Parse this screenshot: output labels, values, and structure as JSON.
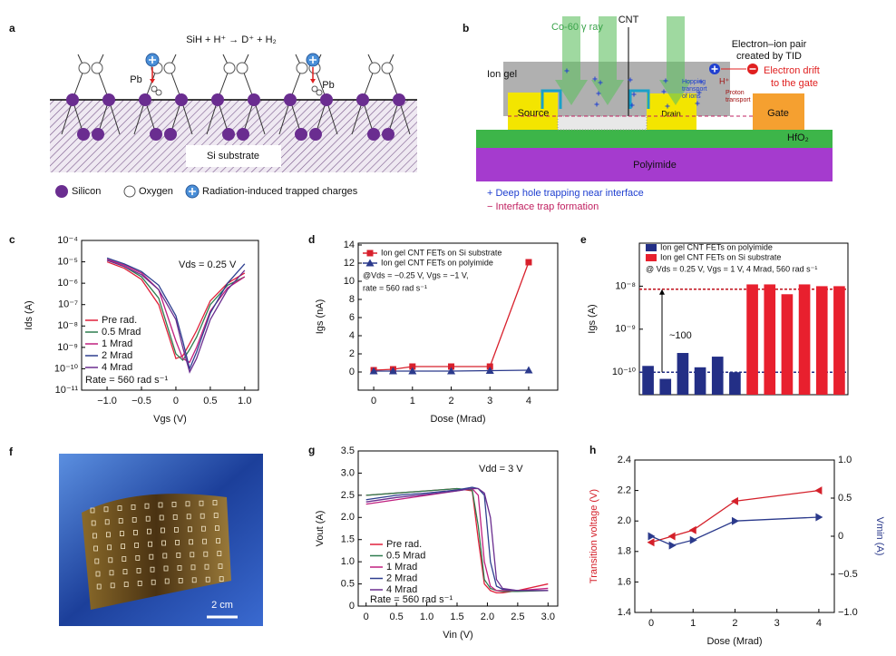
{
  "panel_a": {
    "label": "a",
    "equation": "SiH + H⁺ → D⁺ + H₂",
    "pb": [
      "Pb",
      "Pb"
    ],
    "substrate": "Si substrate",
    "legend": [
      "Silicon",
      "Oxygen",
      "Radiation-induced trapped charges"
    ]
  },
  "panel_b": {
    "label": "b",
    "cnt": "CNT",
    "ray": "Co-60 γ ray",
    "pair": [
      "Electron–ion pair",
      "created by TID"
    ],
    "ion_gel": "Ion gel",
    "hopping": [
      "Hopping",
      "transport",
      "of ions"
    ],
    "drift": [
      "Electron drift",
      "to the gate"
    ],
    "proton": "H⁺",
    "proton_transport": [
      "Proton",
      "transport"
    ],
    "source": "Source",
    "drain": "Drain",
    "gate": "Gate",
    "hfo2": "HfO₂",
    "polyimide": "Polyimide",
    "notes": [
      "+ Deep hole trapping near interface",
      "− Interface trap formation"
    ]
  },
  "panel_f": {
    "label": "f",
    "scale": "2 cm"
  },
  "chart_data": [
    {
      "type": "line",
      "label": "c",
      "xlabel": "Vgs (V)",
      "ylabel": "Ids (A)",
      "log_y": true,
      "xlim": [
        -1.37,
        1.2
      ],
      "ylim": [
        1e-11,
        0.0001
      ],
      "xticks": [
        {
          "value": -1,
          "label": "−1.0"
        },
        {
          "value": -0.5,
          "label": "−0.5"
        },
        0,
        0.5,
        {
          "value": 1,
          "label": "1.0"
        }
      ],
      "yticks": [
        {
          "value": 1e-11,
          "label": "10⁻¹¹"
        },
        {
          "value": 1e-10,
          "label": "10⁻¹⁰"
        },
        {
          "value": 1e-09,
          "label": "10⁻⁹"
        },
        {
          "value": 1e-08,
          "label": "10⁻⁸"
        },
        {
          "value": 1e-07,
          "label": "10⁻⁷"
        },
        {
          "value": 1e-06,
          "label": "10⁻⁶"
        },
        {
          "value": 1e-05,
          "label": "10⁻⁵"
        },
        {
          "value": 0.0001,
          "label": "10⁻⁴"
        }
      ],
      "x": [
        -1,
        -0.75,
        -0.5,
        -0.25,
        0,
        0.1,
        0.2,
        0.3,
        0.5,
        0.75,
        1
      ],
      "series": [
        {
          "name": "Pre rad.",
          "color": "#e0203a",
          "values": [
            1e-05,
            5e-06,
            1.5e-06,
            1e-07,
            3e-10,
            4e-10,
            1.5e-09,
            6e-09,
            1.5e-07,
            1e-06,
            3e-06
          ]
        },
        {
          "name": "0.5 Mrad",
          "color": "#2e7d4f",
          "values": [
            1.2e-05,
            6e-06,
            2e-06,
            2e-07,
            5e-10,
            2.5e-10,
            8e-10,
            3e-09,
            1e-07,
            8e-07,
            2e-06
          ]
        },
        {
          "name": "1 Mrad",
          "color": "#c0207f",
          "values": [
            1.3e-05,
            7e-06,
            3e-06,
            5e-07,
            2e-09,
            3e-10,
            2e-10,
            1e-09,
            5e-08,
            6e-07,
            2e-06
          ]
        },
        {
          "name": "2 Mrad",
          "color": "#2e3f8f",
          "values": [
            1.5e-05,
            8e-06,
            3.5e-06,
            8e-07,
            3e-08,
            2e-09,
            1e-10,
            6e-10,
            4e-08,
            1e-06,
            8e-06
          ]
        },
        {
          "name": "4 Mrad",
          "color": "#6a2d8f",
          "values": [
            1.2e-05,
            6e-06,
            2.5e-06,
            5e-07,
            2e-08,
            1e-09,
            7e-11,
            3e-10,
            2e-08,
            5e-07,
            4e-06
          ]
        }
      ],
      "annotations": [
        "Vds = 0.25 V",
        "Rate = 560 rad s⁻¹"
      ],
      "legend": "lower left"
    },
    {
      "type": "line",
      "label": "d",
      "xlabel": "Dose (Mrad)",
      "ylabel": "Igs (nA)",
      "xlim": [
        -0.4,
        4.75
      ],
      "ylim": [
        -2,
        14.2
      ],
      "xticks": [
        0,
        1,
        2,
        3,
        4
      ],
      "yticks": [
        0,
        2,
        4,
        6,
        8,
        10,
        12,
        14
      ],
      "x": [
        0,
        0.5,
        1,
        2,
        3,
        4
      ],
      "series": [
        {
          "name": "Ion gel CNT FETs on Si substrate",
          "color": "#d8202c",
          "marker": "square",
          "values": [
            0.2,
            0.3,
            0.6,
            0.6,
            0.6,
            12.1
          ]
        },
        {
          "name": "Ion gel CNT FETs on polyimide",
          "color": "#2b3a8c",
          "marker": "triangle",
          "values": [
            0.1,
            0.1,
            0.1,
            0.1,
            0.15,
            0.2
          ]
        }
      ],
      "annotations": [
        "@Vds = −0.25 V, Vgs = −1 V,",
        "rate = 560 rad s⁻¹"
      ],
      "legend": "upper left"
    },
    {
      "type": "bar",
      "label": "e",
      "ylabel": "Igs (A)",
      "log_y": true,
      "ylim": [
        3e-11,
        1e-07
      ],
      "yticks": [
        {
          "value": 1e-10,
          "label": "10⁻¹⁰"
        },
        {
          "value": 1e-09,
          "label": "10⁻⁹"
        },
        {
          "value": 1e-08,
          "label": "10⁻⁸"
        }
      ],
      "categories": [
        null,
        null,
        null,
        null,
        null,
        null,
        null,
        null,
        null,
        null,
        null,
        null
      ],
      "series": [
        {
          "name": "Ion gel CNT FETs on polyimide",
          "color": "#232f86",
          "values": [
            1.4e-10,
            7e-11,
            2.8e-10,
            1.3e-10,
            2.3e-10,
            1e-10,
            null,
            null,
            null,
            null,
            null,
            null
          ]
        },
        {
          "name": "Ion gel CNT FETs on Si substrate",
          "color": "#e8202e",
          "values": [
            null,
            null,
            null,
            null,
            null,
            null,
            1.1e-08,
            1.1e-08,
            6.5e-09,
            1.1e-08,
            1e-08,
            1e-08
          ]
        }
      ],
      "hlines": [
        {
          "value": 8.5e-09,
          "color": "#c0101c"
        },
        {
          "value": 1e-10,
          "color": "#232f86"
        }
      ],
      "annotations": [
        "@ Vds = 0.25 V, Vgs = 1 V, 4 Mrad, 560 rad s⁻¹",
        "~100"
      ],
      "legend": "upper left"
    },
    {
      "type": "line",
      "label": "g",
      "xlabel": "Vin (V)",
      "ylabel": "Vout (A)",
      "xlim": [
        -0.13,
        3.16
      ],
      "ylim": [
        0,
        3.5
      ],
      "xticks": [
        0,
        0.5,
        {
          "value": 1,
          "label": "1.0"
        },
        1.5,
        {
          "value": 2,
          "label": "2.0"
        },
        2.5,
        {
          "value": 3,
          "label": "3.0"
        }
      ],
      "yticks": [
        0,
        0.5,
        {
          "value": 1,
          "label": "1.0"
        },
        1.5,
        {
          "value": 2,
          "label": "2.0"
        },
        2.5,
        {
          "value": 3,
          "label": "3.0"
        },
        3.5
      ],
      "x": [
        0,
        0.5,
        1,
        1.5,
        1.75,
        1.85,
        1.95,
        2.05,
        2.15,
        2.25,
        2.5,
        3
      ],
      "series": [
        {
          "name": "Pre rad.",
          "color": "#e0203a",
          "values": [
            2.5,
            2.55,
            2.6,
            2.65,
            2.6,
            1.5,
            0.5,
            0.35,
            0.3,
            0.3,
            0.35,
            0.5
          ]
        },
        {
          "name": "0.5 Mrad",
          "color": "#2e7d4f",
          "values": [
            2.5,
            2.55,
            2.6,
            2.65,
            2.62,
            1.8,
            0.6,
            0.4,
            0.35,
            0.33,
            0.33,
            0.35
          ]
        },
        {
          "name": "1 Mrad",
          "color": "#c0207f",
          "values": [
            2.3,
            2.4,
            2.5,
            2.6,
            2.65,
            2.5,
            1,
            0.45,
            0.35,
            0.35,
            0.35,
            0.4
          ]
        },
        {
          "name": "2 Mrad",
          "color": "#2e3f8f",
          "values": [
            2.4,
            2.5,
            2.55,
            2.62,
            2.68,
            2.65,
            2.5,
            1,
            0.45,
            0.38,
            0.35,
            0.35
          ]
        },
        {
          "name": "4 Mrad",
          "color": "#6a2d8f",
          "values": [
            2.35,
            2.45,
            2.52,
            2.6,
            2.65,
            2.65,
            2.55,
            2,
            0.6,
            0.4,
            0.35,
            0.35
          ]
        }
      ],
      "annotations": [
        "Vdd = 3 V",
        "Rate = 560 rad s⁻¹"
      ],
      "legend": "lower left"
    },
    {
      "type": "line",
      "label": "h",
      "xlabel": "Dose (Mrad)",
      "ylabel": "Transition voltage (V)",
      "y2label": "Vmin (A)",
      "ylabel_color": "#d4202a",
      "y2label_color": "#2b3a8c",
      "xlim": [
        -0.39,
        4.37
      ],
      "ylim": [
        1.4,
        2.4
      ],
      "y2lim": [
        -1,
        1
      ],
      "xticks": [
        0,
        1,
        2,
        3,
        4
      ],
      "yticks": [
        1.4,
        1.6,
        1.8,
        {
          "value": 2,
          "label": "2.0"
        },
        2.2,
        2.4
      ],
      "y2ticks": [
        {
          "value": -1,
          "label": "−1.0"
        },
        {
          "value": -0.5,
          "label": "−0.5"
        },
        0,
        0.5,
        {
          "value": 1,
          "label": "1.0"
        }
      ],
      "x": [
        0,
        0.5,
        1,
        2,
        4
      ],
      "series": [
        {
          "color": "#d4202a",
          "marker": "triangle-left",
          "values": [
            1.86,
            1.9,
            1.94,
            2.13,
            2.2
          ]
        },
        {
          "color": "#2b3a8c",
          "marker": "triangle-right",
          "axis": "y2",
          "values": [
            0,
            -0.12,
            -0.05,
            0.2,
            0.25
          ]
        }
      ]
    }
  ]
}
